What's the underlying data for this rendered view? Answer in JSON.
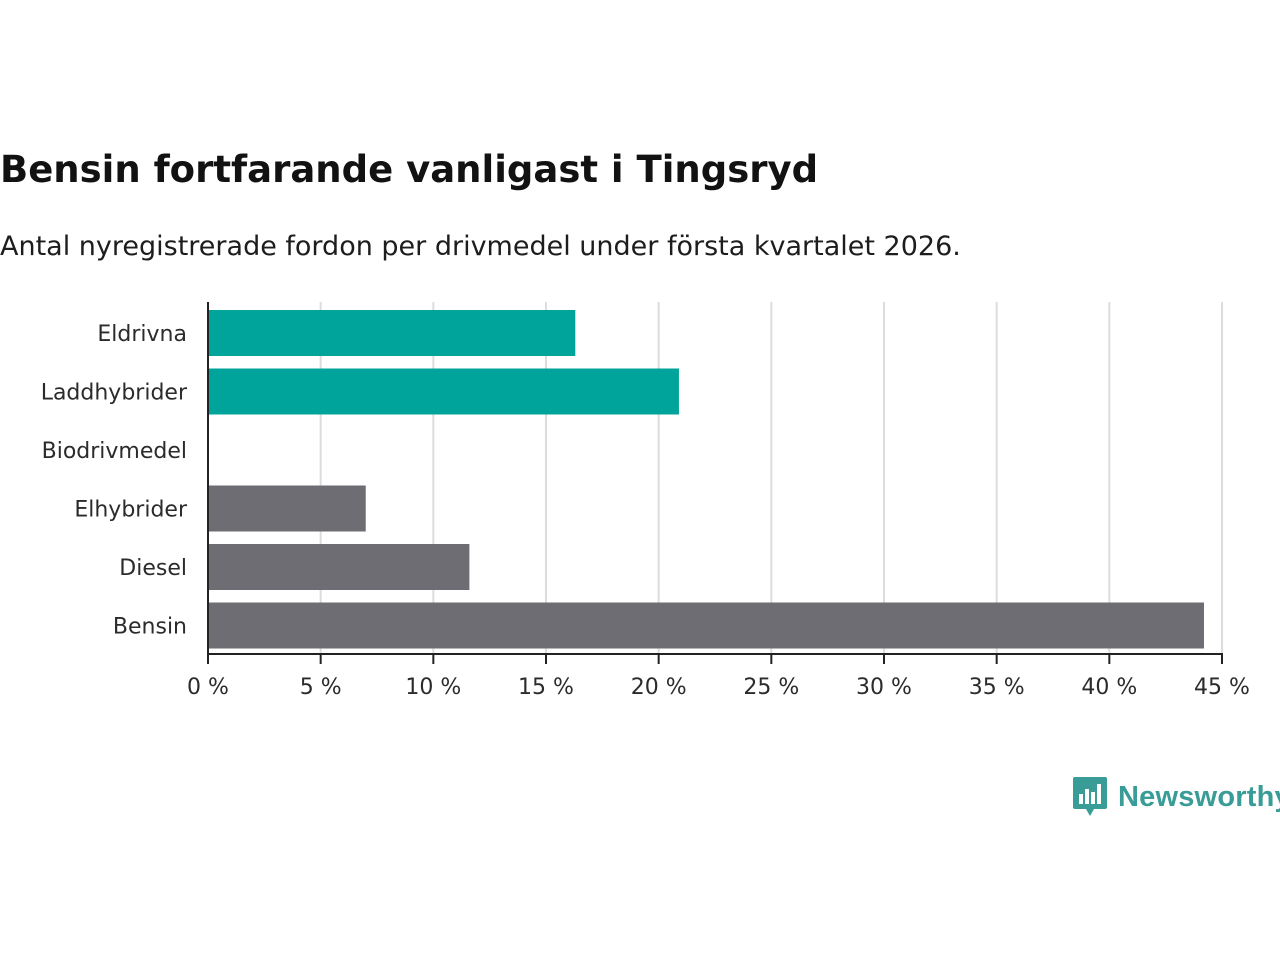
{
  "header": {
    "title": "Bensin fortfarande vanligast i Tingsryd",
    "subtitle": "Antal nyregistrerade fordon per drivmedel under första kvartalet 2026."
  },
  "chart_data": {
    "type": "bar",
    "orientation": "horizontal",
    "categories": [
      "Eldrivna",
      "Laddhybrider",
      "Biodrivmedel",
      "Elhybrider",
      "Diesel",
      "Bensin"
    ],
    "values": [
      16.3,
      20.9,
      0,
      7.0,
      11.6,
      44.2
    ],
    "bar_colors": [
      "#00a49a",
      "#00a49a",
      "#00a49a",
      "#6e6d73",
      "#6e6d73",
      "#6e6d73"
    ],
    "xlim": [
      0,
      45
    ],
    "xticks": [
      0,
      5,
      10,
      15,
      20,
      25,
      30,
      35,
      40,
      45
    ],
    "xtick_labels": [
      "0 %",
      "5 %",
      "10 %",
      "15 %",
      "20 %",
      "25 %",
      "30 %",
      "35 %",
      "40 %",
      "45 %"
    ],
    "grid": "vertical",
    "xlabel": "",
    "ylabel": ""
  },
  "branding": {
    "name": "Newsworthy",
    "logo_icon": "bar-chart-speech-bubble-icon",
    "color": "#3a9c97"
  }
}
